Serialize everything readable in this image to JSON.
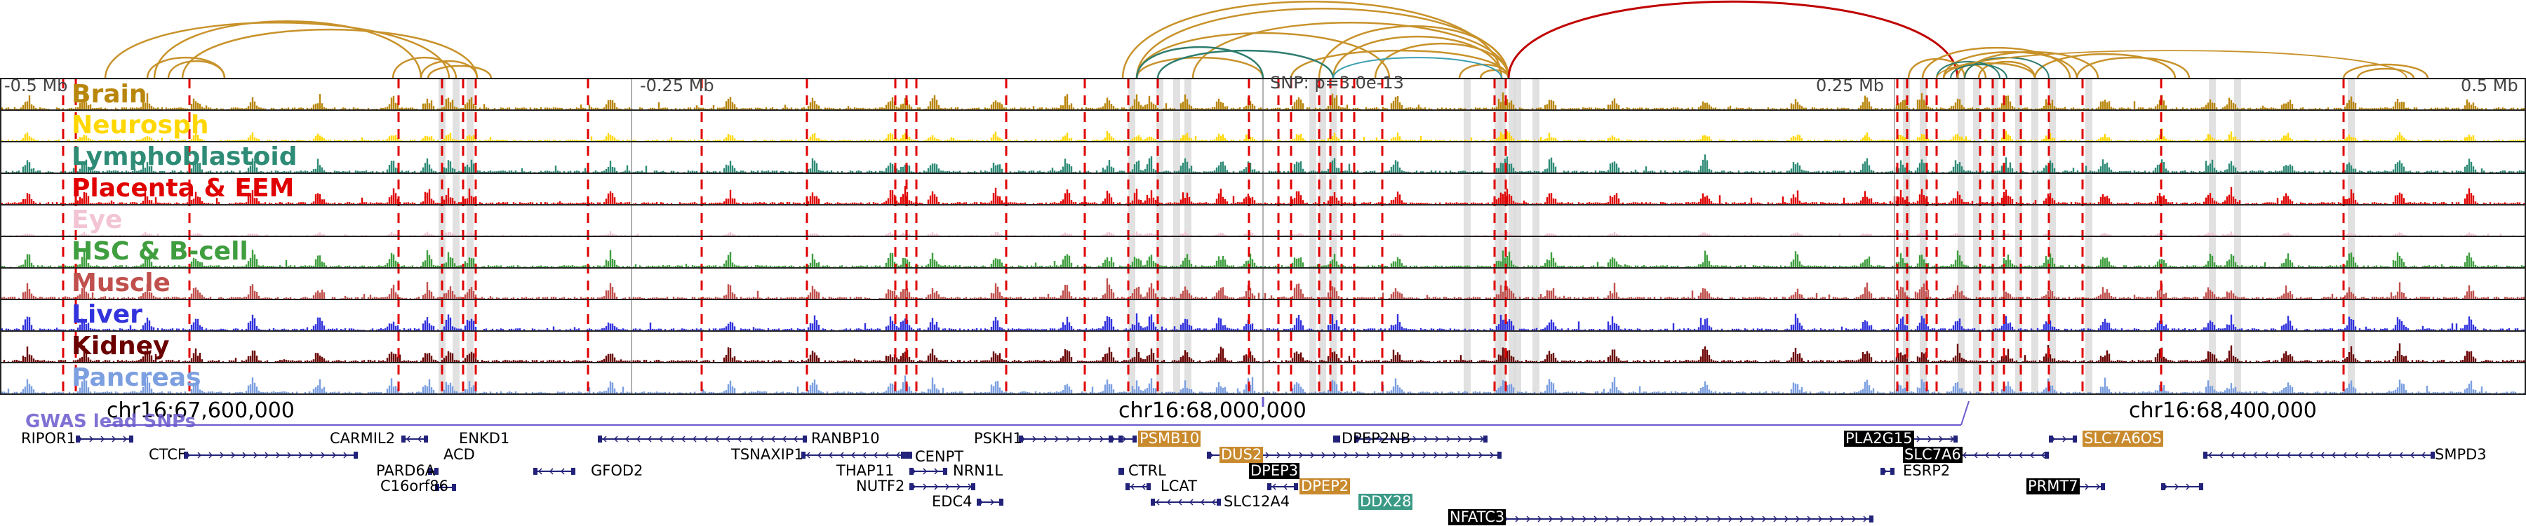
{
  "axis": {
    "left_label": "-0.5 Mb",
    "mid_left_label": "-0.25 Mb",
    "center_label": "SNP: p=3.0e-13",
    "mid_right_label": "0.25 Mb",
    "right_label": "0.5 Mb"
  },
  "chrom_labels": [
    "chr16:67,600,000",
    "chr16:68,000,000",
    "chr16:68,400,000"
  ],
  "gwas_label": "GWAS lead SNPs",
  "tracks": [
    {
      "name": "Brain",
      "color": "#b8860b"
    },
    {
      "name": "Neurosph",
      "color": "#ffd700"
    },
    {
      "name": "Lymphoblastoid",
      "color": "#2e8b76"
    },
    {
      "name": "Placenta & EEM",
      "color": "#e00000"
    },
    {
      "name": "Eye",
      "color": "#f2c4d4"
    },
    {
      "name": "HSC & B-cell",
      "color": "#3f9e3f"
    },
    {
      "name": "Muscle",
      "color": "#c0504d"
    },
    {
      "name": "Liver",
      "color": "#3333dd"
    },
    {
      "name": "Kidney",
      "color": "#6b0000"
    },
    {
      "name": "Pancreas",
      "color": "#7b9fe0"
    }
  ],
  "genes": [
    {
      "name": "RIPOR1",
      "hl": ""
    },
    {
      "name": "CTCF",
      "hl": ""
    },
    {
      "name": "CARMIL2",
      "hl": ""
    },
    {
      "name": "PARD6A",
      "hl": ""
    },
    {
      "name": "C16orf86",
      "hl": ""
    },
    {
      "name": "ENKD1",
      "hl": ""
    },
    {
      "name": "ACD",
      "hl": ""
    },
    {
      "name": "GFOD2",
      "hl": ""
    },
    {
      "name": "RANBP10",
      "hl": ""
    },
    {
      "name": "TSNAXIP1",
      "hl": ""
    },
    {
      "name": "CENPT",
      "hl": ""
    },
    {
      "name": "THAP11",
      "hl": ""
    },
    {
      "name": "NUTF2",
      "hl": ""
    },
    {
      "name": "NRN1L",
      "hl": ""
    },
    {
      "name": "EDC4",
      "hl": ""
    },
    {
      "name": "PSKH1",
      "hl": ""
    },
    {
      "name": "PSMB10",
      "hl": "orange"
    },
    {
      "name": "CTRL",
      "hl": ""
    },
    {
      "name": "LCAT",
      "hl": ""
    },
    {
      "name": "DUS2",
      "hl": "orange"
    },
    {
      "name": "DPEP3",
      "hl": "black"
    },
    {
      "name": "DPEP2",
      "hl": "orange"
    },
    {
      "name": "SLC12A4",
      "hl": ""
    },
    {
      "name": "DDX28",
      "hl": "teal"
    },
    {
      "name": "DPEP2NB",
      "hl": ""
    },
    {
      "name": "NFATC3",
      "hl": "black"
    },
    {
      "name": "PLA2G15",
      "hl": "black"
    },
    {
      "name": "SLC7A6",
      "hl": "black"
    },
    {
      "name": "ESRP2",
      "hl": ""
    },
    {
      "name": "SLC7A6OS",
      "hl": "orange"
    },
    {
      "name": "PRMT7",
      "hl": "black"
    },
    {
      "name": "SMPD3",
      "hl": ""
    }
  ]
}
